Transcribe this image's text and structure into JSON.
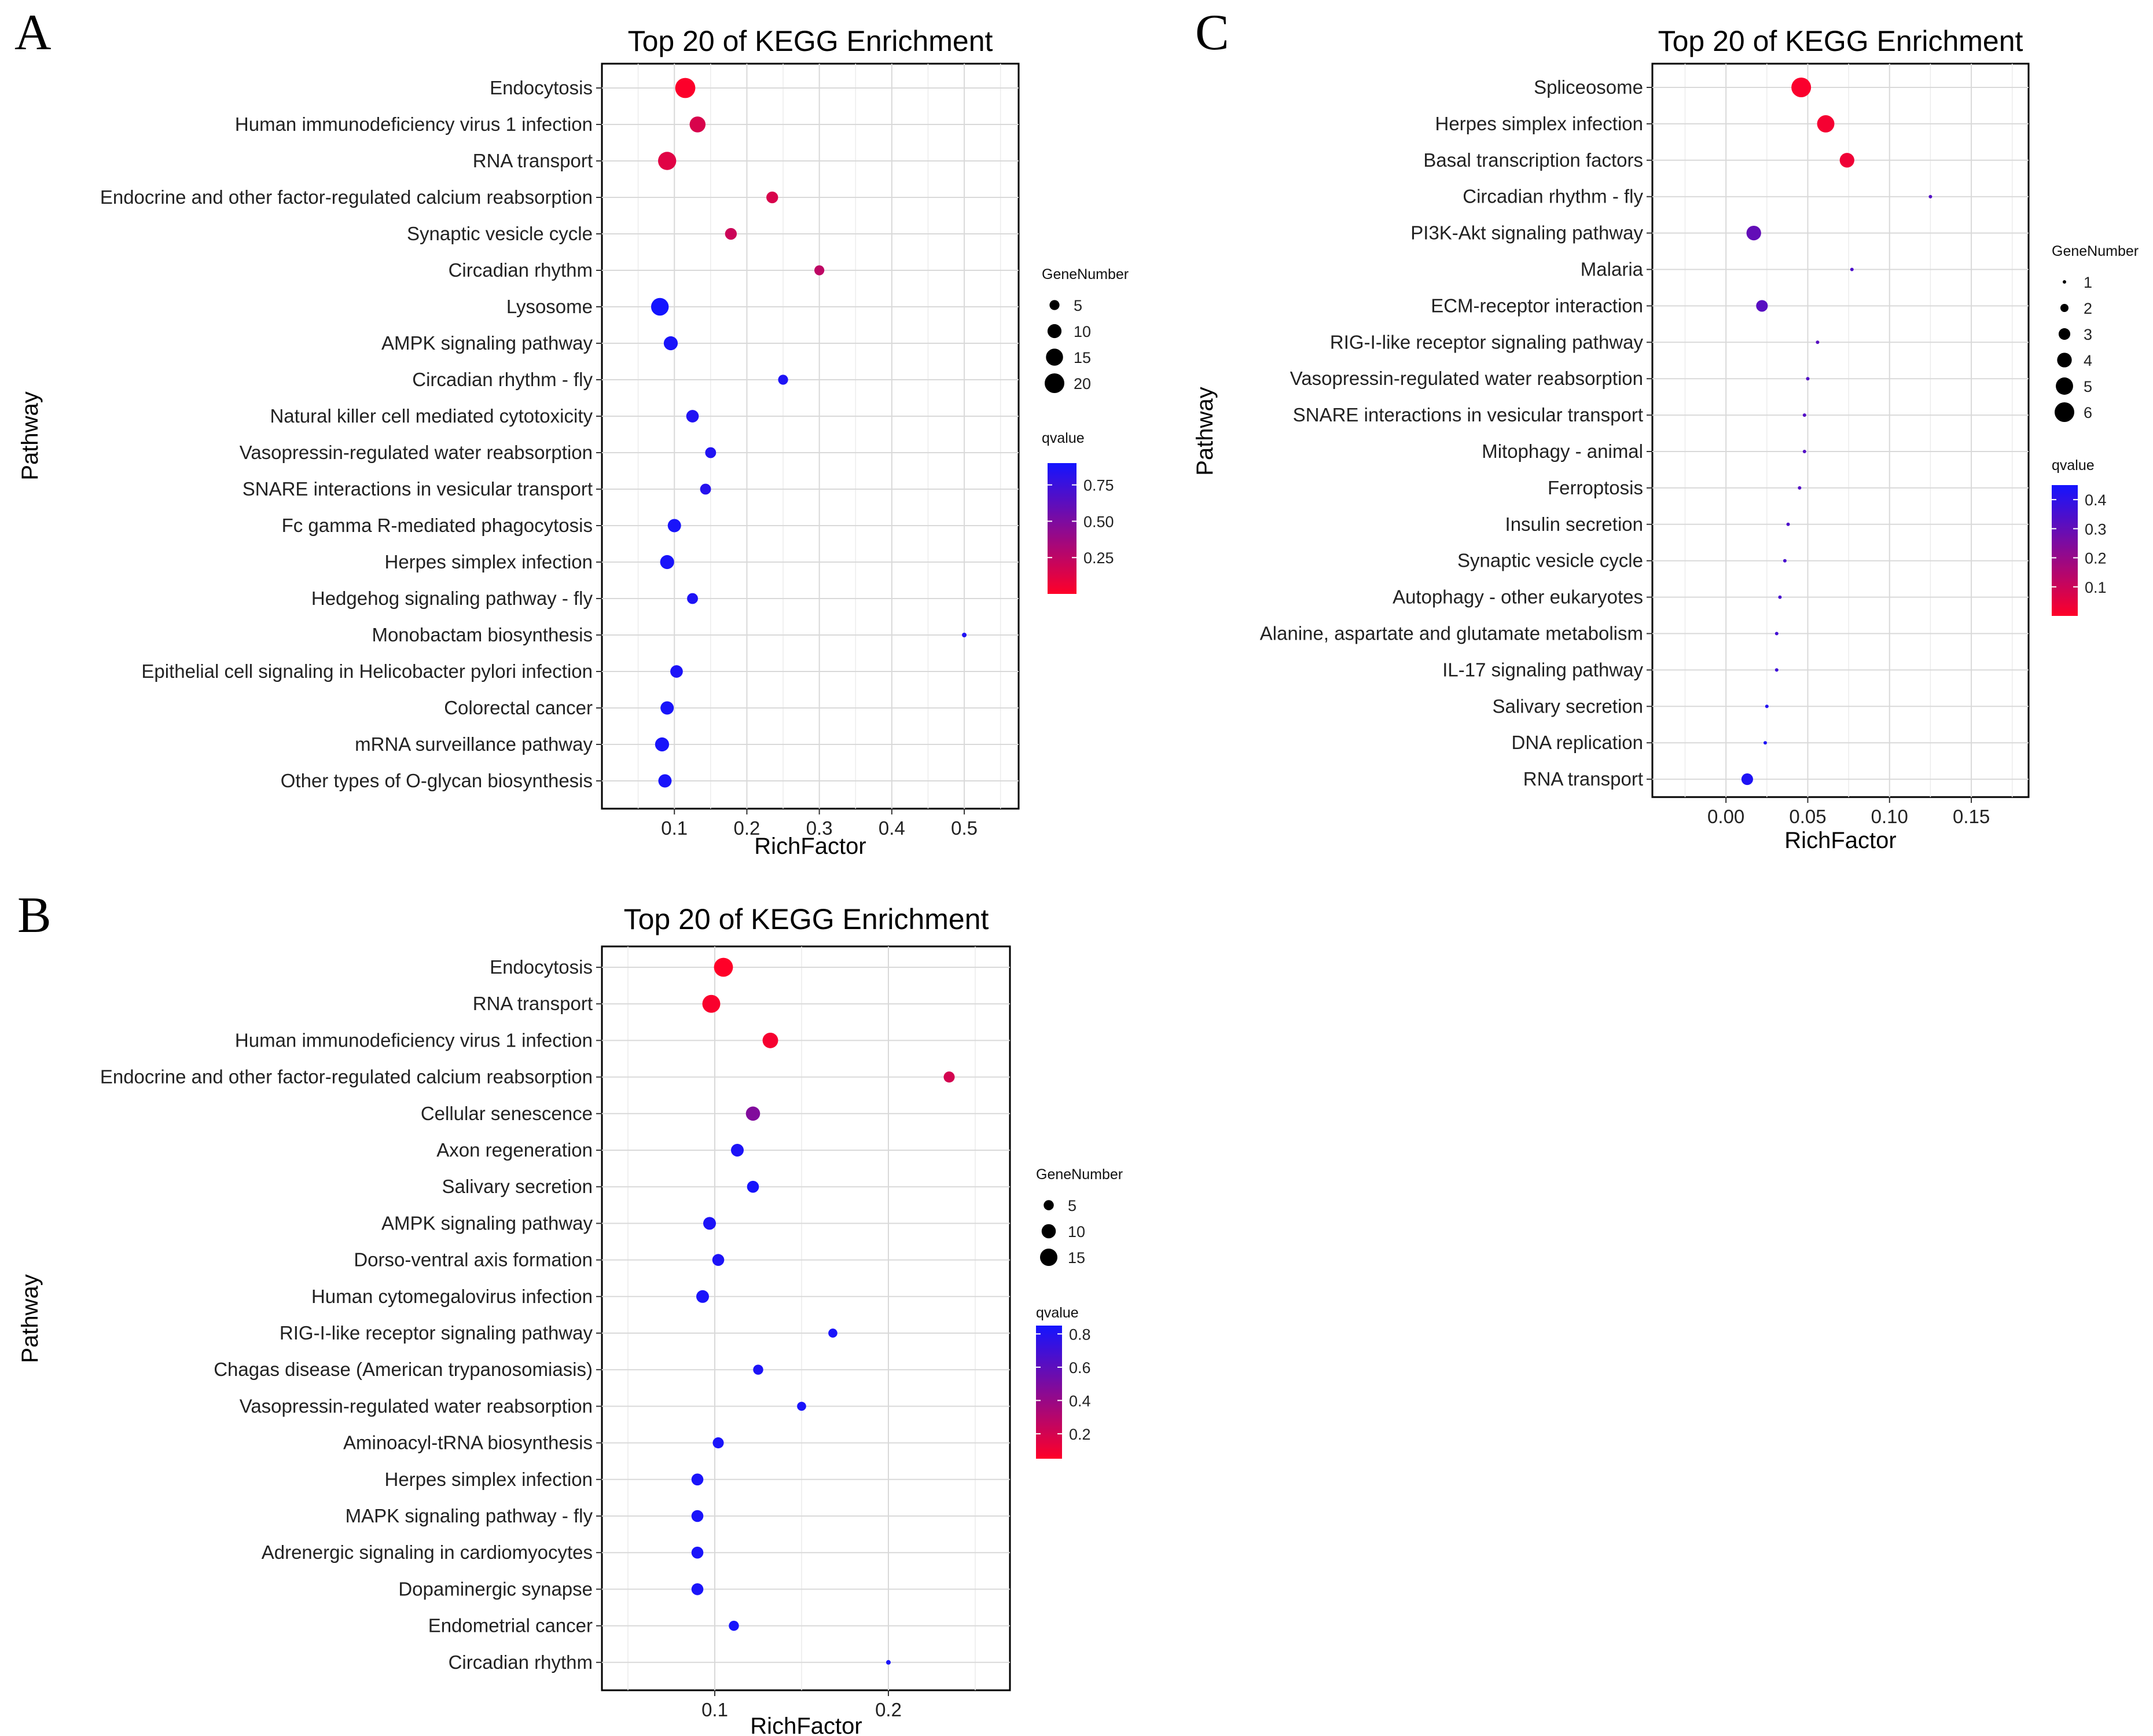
{
  "chart_data": [
    {
      "panel": "A",
      "type": "scatter",
      "title": "Top 20 of KEGG Enrichment",
      "xlabel": "RichFactor",
      "ylabel": "Pathway",
      "xlim": [
        0.0,
        0.575
      ],
      "xticks": [
        0.1,
        0.2,
        0.3,
        0.4,
        0.5
      ],
      "xtick_labels": [
        "0.1",
        "0.2",
        "0.3",
        "0.4",
        "0.5"
      ],
      "grid": true,
      "size_legend": {
        "title": "GeneNumber",
        "values": [
          5,
          10,
          15,
          20
        ],
        "labels": [
          "5",
          "10",
          "15",
          "20"
        ]
      },
      "color_legend": {
        "title": "qvalue",
        "range": [
          0.0,
          0.9
        ],
        "ticks": [
          0.75,
          0.5,
          0.25
        ],
        "labels": [
          "0.75",
          "0.50",
          "0.25"
        ]
      },
      "pathways": [
        "Endocytosis",
        "Human immunodeficiency virus 1 infection",
        "RNA transport",
        "Endocrine and other factor-regulated calcium reabsorption",
        "Synaptic vesicle cycle",
        "Circadian rhythm",
        "Lysosome",
        "AMPK signaling pathway",
        "Circadian rhythm - fly",
        "Natural killer cell mediated cytotoxicity",
        "Vasopressin-regulated water reabsorption",
        "SNARE interactions in vesicular transport",
        "Fc gamma R-mediated phagocytosis",
        "Herpes simplex infection",
        "Hedgehog signaling pathway - fly",
        "Monobactam biosynthesis",
        "Epithelial cell signaling in Helicobacter pylori infection",
        "Colorectal cancer",
        "mRNA surveillance pathway",
        "Other types of O-glycan biosynthesis"
      ],
      "richfactor": [
        0.115,
        0.132,
        0.09,
        0.235,
        0.178,
        0.3,
        0.08,
        0.095,
        0.25,
        0.125,
        0.15,
        0.143,
        0.1,
        0.09,
        0.125,
        0.5,
        0.103,
        0.09,
        0.083,
        0.087
      ],
      "gene_number": [
        21,
        13,
        17,
        7,
        7,
        5,
        16,
        10,
        5,
        8,
        6,
        6,
        9,
        10,
        6,
        1,
        8,
        9,
        10,
        9
      ],
      "qvalue": [
        0.01,
        0.15,
        0.12,
        0.15,
        0.2,
        0.25,
        0.9,
        0.88,
        0.86,
        0.85,
        0.85,
        0.83,
        0.88,
        0.88,
        0.86,
        0.85,
        0.87,
        0.88,
        0.88,
        0.88
      ]
    },
    {
      "panel": "B",
      "type": "scatter",
      "title": "Top 20 of KEGG Enrichment",
      "xlabel": "RichFactor",
      "ylabel": "Pathway",
      "xlim": [
        0.035,
        0.27
      ],
      "xticks": [
        0.1,
        0.2
      ],
      "xtick_labels": [
        "0.1",
        "0.2"
      ],
      "grid": true,
      "size_legend": {
        "title": "GeneNumber",
        "values": [
          5,
          10,
          15
        ],
        "labels": [
          "5",
          "10",
          "15"
        ]
      },
      "color_legend": {
        "title": "qvalue",
        "range": [
          0.05,
          0.85
        ],
        "ticks": [
          0.8,
          0.6,
          0.4,
          0.2
        ],
        "labels": [
          "0.8",
          "0.6",
          "0.4",
          "0.2"
        ]
      },
      "pathways": [
        "Endocytosis",
        "RNA transport",
        "Human immunodeficiency virus 1 infection",
        "Endocrine and other factor-regulated calcium reabsorption",
        "Cellular senescence",
        "Axon regeneration",
        "Salivary secretion",
        "AMPK signaling pathway",
        "Dorso-ventral axis formation",
        "Human cytomegalovirus infection",
        "RIG-I-like receptor signaling pathway",
        "Chagas disease (American trypanosomiasis)",
        "Vasopressin-regulated water reabsorption",
        "Aminoacyl-tRNA biosynthesis",
        "Herpes simplex infection",
        "MAPK signaling pathway - fly",
        "Adrenergic signaling in cardiomyocytes",
        "Dopaminergic synapse",
        "Endometrial cancer",
        "Circadian rhythm"
      ],
      "richfactor": [
        0.105,
        0.098,
        0.132,
        0.235,
        0.122,
        0.113,
        0.122,
        0.097,
        0.102,
        0.093,
        0.168,
        0.125,
        0.15,
        0.102,
        0.09,
        0.09,
        0.09,
        0.09,
        0.111,
        0.2
      ],
      "gene_number": [
        18,
        16,
        12,
        6,
        10,
        8,
        7,
        8,
        7,
        8,
        4,
        5,
        4,
        6,
        7,
        7,
        7,
        7,
        5,
        1
      ],
      "qvalue": [
        0.05,
        0.07,
        0.08,
        0.2,
        0.48,
        0.82,
        0.84,
        0.82,
        0.82,
        0.83,
        0.83,
        0.82,
        0.83,
        0.83,
        0.83,
        0.83,
        0.83,
        0.83,
        0.84,
        0.83
      ]
    },
    {
      "panel": "C",
      "type": "scatter",
      "title": "Top 20 of KEGG Enrichment",
      "xlabel": "RichFactor",
      "ylabel": "Pathway",
      "xlim": [
        -0.045,
        0.185
      ],
      "xticks": [
        0.0,
        0.05,
        0.1,
        0.15
      ],
      "xtick_labels": [
        "0.00",
        "0.05",
        "0.10",
        "0.15"
      ],
      "grid": true,
      "size_legend": {
        "title": "GeneNumber",
        "values": [
          1,
          2,
          3,
          4,
          5,
          6
        ],
        "labels": [
          "1",
          "2",
          "3",
          "4",
          "5",
          "6"
        ]
      },
      "color_legend": {
        "title": "qvalue",
        "range": [
          0.0,
          0.45
        ],
        "ticks": [
          0.4,
          0.3,
          0.2,
          0.1
        ],
        "labels": [
          "0.4",
          "0.3",
          "0.2",
          "0.1"
        ]
      },
      "pathways": [
        "Spliceosome",
        "Herpes simplex infection",
        "Basal transcription factors",
        "Circadian rhythm - fly",
        "PI3K-Akt signaling pathway",
        "Malaria",
        "ECM-receptor interaction",
        "RIG-I-like receptor signaling pathway",
        "Vasopressin-regulated water reabsorption",
        "SNARE interactions in vesicular transport",
        "Mitophagy - animal",
        "Ferroptosis",
        "Insulin secretion",
        "Synaptic vesicle cycle",
        "Autophagy - other eukaryotes",
        "Alanine, aspartate and glutamate metabolism",
        "IL-17 signaling pathway",
        "Salivary secretion",
        "DNA replication",
        "RNA transport"
      ],
      "richfactor": [
        0.046,
        0.061,
        0.074,
        0.125,
        0.017,
        0.077,
        0.022,
        0.056,
        0.05,
        0.048,
        0.048,
        0.045,
        0.038,
        0.036,
        0.033,
        0.031,
        0.031,
        0.025,
        0.024,
        0.013
      ],
      "gene_number": [
        6,
        5,
        4,
        1,
        4,
        1,
        3,
        1,
        1,
        1,
        1,
        1,
        1,
        1,
        1,
        1,
        1,
        1,
        1,
        3
      ],
      "qvalue": [
        0.01,
        0.02,
        0.03,
        0.33,
        0.3,
        0.34,
        0.32,
        0.32,
        0.33,
        0.33,
        0.33,
        0.33,
        0.34,
        0.35,
        0.35,
        0.36,
        0.37,
        0.42,
        0.43,
        0.43
      ]
    }
  ]
}
